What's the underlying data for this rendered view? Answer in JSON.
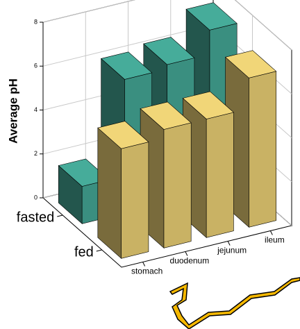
{
  "chart_data": {
    "type": "bar3d",
    "y_label": "Average pH",
    "categories": [
      "stomach",
      "duodenum",
      "jejunum",
      "ileum"
    ],
    "series": [
      {
        "name": "fasted",
        "color": "#3a8f80",
        "values": [
          1.7,
          6.1,
          6.3,
          7.4
        ]
      },
      {
        "name": "fed",
        "color": "#c9b264",
        "values": [
          5.0,
          5.4,
          5.4,
          6.8
        ]
      }
    ],
    "ylim": [
      0,
      8
    ],
    "yticks": [
      0,
      2,
      4,
      6,
      8
    ],
    "grid": true
  }
}
